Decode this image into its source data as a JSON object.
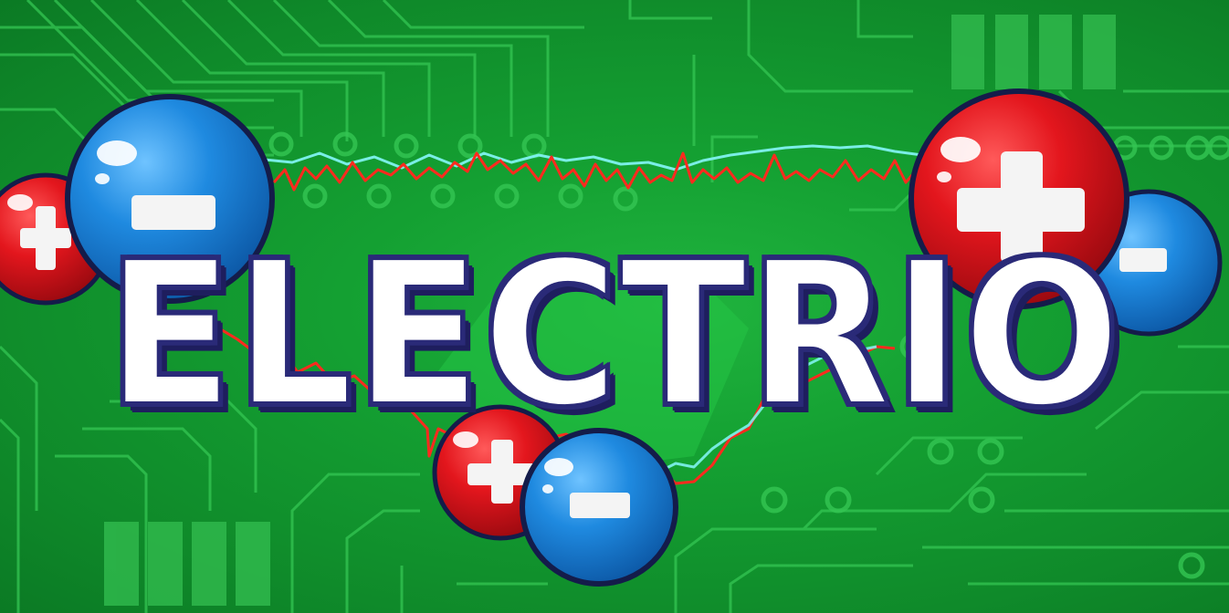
{
  "game": {
    "title": "ELECTRIO"
  },
  "particles": [
    {
      "kind": "proton",
      "symbol": "+"
    },
    {
      "kind": "electron",
      "symbol": "−"
    },
    {
      "kind": "proton",
      "symbol": "+"
    },
    {
      "kind": "electron",
      "symbol": "−"
    },
    {
      "kind": "proton",
      "symbol": "+"
    },
    {
      "kind": "electron",
      "symbol": "−"
    }
  ],
  "colors": {
    "board": "#14a032",
    "trace": "#3fd35a",
    "proton": "#d8141c",
    "electron": "#1a86d6",
    "signal_red": "#e8201c",
    "signal_cyan": "#4fe6e6",
    "title_fill": "#ffffff",
    "title_outline": "#2a2a78"
  }
}
